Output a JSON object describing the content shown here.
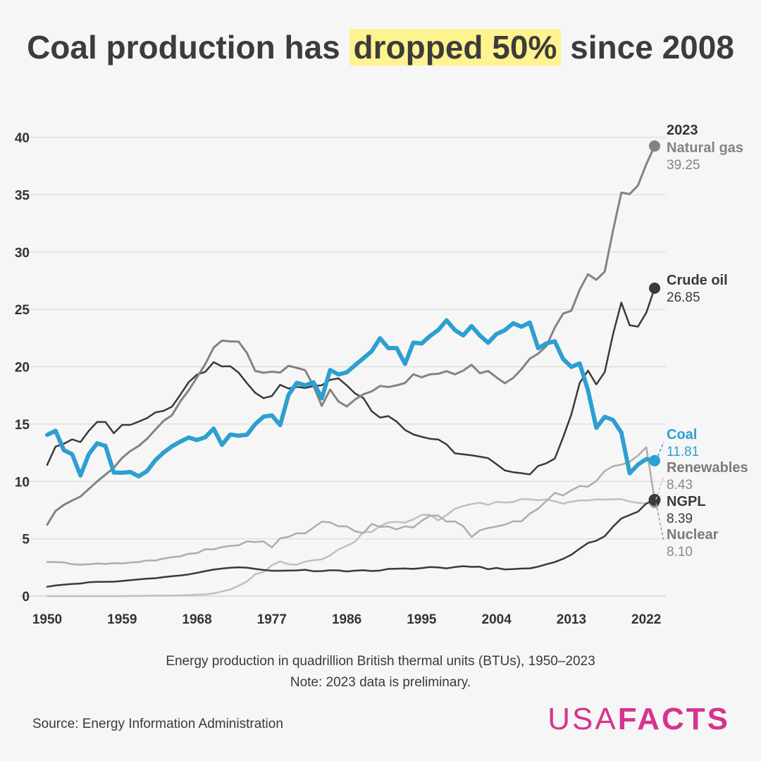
{
  "title": {
    "before": "Coal production has ",
    "highlight": "dropped 50%",
    "after": " since 2008",
    "highlight_color": "#fff38f"
  },
  "caption": {
    "line1": "Energy production in quadrillion British thermal units (BTUs), 1950–2023",
    "line2": "Note: 2023 data is preliminary."
  },
  "source": "Source: Energy Information Administration",
  "logo": {
    "part1": "USA",
    "part2": "FACTS",
    "color": "#d6338e"
  },
  "chart_data": {
    "type": "line",
    "title": "Coal production has dropped 50% since 2008",
    "xlabel": "",
    "ylabel": "Energy production in quadrillion British thermal units (BTUs)",
    "xlim": [
      1950,
      2023
    ],
    "ylim": [
      0,
      40
    ],
    "x_ticks": [
      1950,
      1959,
      1968,
      1977,
      1986,
      1995,
      2004,
      2013,
      2022
    ],
    "y_ticks": [
      0,
      5,
      10,
      15,
      20,
      25,
      30,
      35,
      40
    ],
    "year_header": "2023",
    "x_start": 1950,
    "series": [
      {
        "name": "Nuclear",
        "color": "#c0c0c0",
        "width": 2.5,
        "end_value": "8.10",
        "values": [
          0,
          0,
          0,
          0,
          0,
          0,
          0,
          0,
          0,
          0,
          0.01,
          0.02,
          0.03,
          0.04,
          0.04,
          0.04,
          0.06,
          0.09,
          0.13,
          0.15,
          0.24,
          0.41,
          0.58,
          0.91,
          1.27,
          1.9,
          2.11,
          2.7,
          3.02,
          2.78,
          2.74,
          3.01,
          3.13,
          3.2,
          3.55,
          4.08,
          4.38,
          4.75,
          5.59,
          5.6,
          6.1,
          6.42,
          6.48,
          6.41,
          6.69,
          7.08,
          7.09,
          6.6,
          7.07,
          7.61,
          7.86,
          8.03,
          8.14,
          7.96,
          8.22,
          8.16,
          8.21,
          8.46,
          8.43,
          8.36,
          8.43,
          8.27,
          8.06,
          8.24,
          8.34,
          8.34,
          8.43,
          8.42,
          8.44,
          8.46,
          8.25,
          8.13,
          8.06,
          8.1
        ]
      },
      {
        "name": "Renewables",
        "color": "#adadad",
        "width": 2.5,
        "end_value": "8.43",
        "values": [
          2.98,
          2.96,
          2.94,
          2.78,
          2.74,
          2.78,
          2.85,
          2.8,
          2.88,
          2.84,
          2.93,
          2.97,
          3.11,
          3.1,
          3.28,
          3.39,
          3.47,
          3.69,
          3.75,
          4.09,
          4.08,
          4.27,
          4.38,
          4.43,
          4.77,
          4.72,
          4.77,
          4.25,
          5.04,
          5.17,
          5.49,
          5.47,
          5.98,
          6.49,
          6.43,
          6.08,
          6.08,
          5.65,
          5.5,
          6.29,
          6.04,
          6.07,
          5.82,
          6.08,
          5.99,
          6.56,
          7.01,
          7.02,
          6.49,
          6.52,
          6.1,
          5.16,
          5.73,
          5.94,
          6.07,
          6.23,
          6.52,
          6.52,
          7.19,
          7.62,
          8.3,
          9.0,
          8.78,
          9.23,
          9.6,
          9.55,
          10.04,
          10.91,
          11.33,
          11.46,
          11.71,
          12.26,
          12.99,
          8.43
        ]
      },
      {
        "name": "NGPL",
        "color": "#3a3a3a",
        "width": 2.5,
        "end_value": "8.39",
        "values": [
          0.82,
          0.93,
          1.0,
          1.06,
          1.1,
          1.21,
          1.25,
          1.25,
          1.26,
          1.32,
          1.39,
          1.46,
          1.52,
          1.56,
          1.66,
          1.74,
          1.8,
          1.89,
          2.03,
          2.18,
          2.31,
          2.4,
          2.47,
          2.51,
          2.48,
          2.37,
          2.28,
          2.21,
          2.21,
          2.23,
          2.24,
          2.3,
          2.17,
          2.18,
          2.26,
          2.24,
          2.15,
          2.22,
          2.26,
          2.19,
          2.23,
          2.37,
          2.39,
          2.41,
          2.37,
          2.44,
          2.53,
          2.5,
          2.42,
          2.53,
          2.61,
          2.55,
          2.56,
          2.35,
          2.46,
          2.33,
          2.36,
          2.4,
          2.42,
          2.57,
          2.78,
          2.97,
          3.25,
          3.61,
          4.14,
          4.63,
          4.83,
          5.22,
          6.06,
          6.77,
          7.07,
          7.37,
          8.08,
          8.39
        ]
      },
      {
        "name": "Crude oil",
        "color": "#3a3a3a",
        "width": 2.5,
        "end_value": "26.85",
        "values": [
          11.45,
          13.04,
          13.28,
          13.67,
          13.43,
          14.41,
          15.18,
          15.18,
          14.2,
          14.93,
          14.93,
          15.22,
          15.52,
          16.02,
          16.16,
          16.52,
          17.56,
          18.65,
          19.31,
          19.56,
          20.4,
          20.03,
          20.04,
          19.49,
          18.57,
          17.73,
          17.26,
          17.45,
          18.43,
          18.1,
          18.25,
          18.15,
          18.31,
          18.39,
          18.85,
          18.99,
          18.38,
          17.67,
          17.28,
          16.12,
          15.57,
          15.7,
          15.22,
          14.49,
          14.1,
          13.89,
          13.72,
          13.66,
          13.23,
          12.45,
          12.36,
          12.28,
          12.16,
          12.03,
          11.5,
          10.96,
          10.8,
          10.72,
          10.61,
          11.35,
          11.59,
          11.99,
          13.84,
          15.86,
          18.59,
          19.66,
          18.46,
          19.53,
          22.84,
          25.6,
          23.62,
          23.5,
          24.71,
          26.85
        ]
      },
      {
        "name": "Natural gas",
        "color": "#838383",
        "width": 3,
        "end_value": "39.25",
        "values": [
          6.23,
          7.42,
          7.96,
          8.34,
          8.68,
          9.34,
          10.0,
          10.6,
          11.19,
          12.05,
          12.66,
          13.1,
          13.72,
          14.51,
          15.29,
          15.78,
          16.98,
          17.94,
          19.07,
          20.24,
          21.67,
          22.28,
          22.21,
          22.19,
          21.21,
          19.64,
          19.48,
          19.57,
          19.49,
          20.08,
          19.91,
          19.7,
          18.32,
          16.59,
          18.01,
          16.98,
          16.54,
          17.14,
          17.6,
          17.85,
          18.33,
          18.23,
          18.38,
          18.58,
          19.35,
          19.08,
          19.34,
          19.39,
          19.61,
          19.34,
          19.66,
          20.17,
          19.44,
          19.63,
          19.07,
          18.56,
          19.02,
          19.79,
          20.7,
          21.14,
          21.81,
          23.41,
          24.63,
          24.89,
          26.72,
          28.07,
          27.58,
          28.29,
          31.88,
          35.19,
          35.06,
          35.81,
          37.66,
          39.25
        ]
      },
      {
        "name": "Coal",
        "color": "#2d9fd0",
        "width": 6,
        "end_value": "11.81",
        "values": [
          14.06,
          14.42,
          12.73,
          12.37,
          10.52,
          12.37,
          13.32,
          13.1,
          10.78,
          10.76,
          10.82,
          10.45,
          10.9,
          11.85,
          12.52,
          13.06,
          13.47,
          13.83,
          13.61,
          13.86,
          14.61,
          13.19,
          14.09,
          13.99,
          14.07,
          14.99,
          15.65,
          15.76,
          14.91,
          17.54,
          18.6,
          18.38,
          18.64,
          17.25,
          19.72,
          19.33,
          19.51,
          20.14,
          20.74,
          21.36,
          22.49,
          21.63,
          21.63,
          20.25,
          22.11,
          22.03,
          22.68,
          23.21,
          24.05,
          23.19,
          22.74,
          23.55,
          22.73,
          22.09,
          22.85,
          23.19,
          23.79,
          23.49,
          23.85,
          21.62,
          22.04,
          22.22,
          20.68,
          19.99,
          20.29,
          17.95,
          14.67,
          15.63,
          15.36,
          14.26,
          10.71,
          11.47,
          11.95,
          11.81
        ]
      }
    ]
  }
}
